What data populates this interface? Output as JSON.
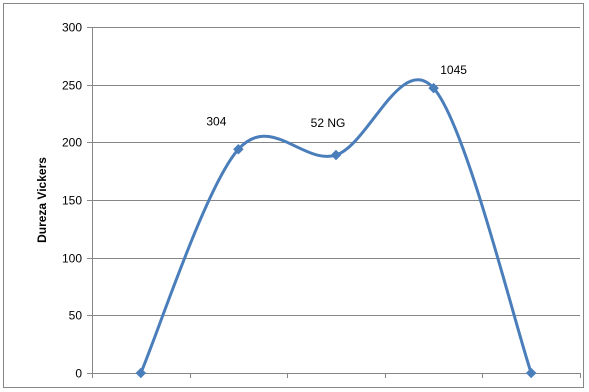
{
  "chart_data": {
    "type": "line",
    "smooth": true,
    "title": "",
    "xlabel": "",
    "ylabel": "Dureza Vickers",
    "ylim": [
      0,
      300
    ],
    "yticks": [
      0,
      50,
      100,
      150,
      200,
      250,
      300
    ],
    "grid": true,
    "legend": "none",
    "x": [
      1,
      2,
      3,
      4,
      5
    ],
    "series": [
      {
        "values": [
          0,
          194,
          189,
          247,
          0
        ],
        "point_labels": [
          "",
          "304",
          "52 NG",
          "1045",
          ""
        ],
        "color": "#4a7ebb"
      }
    ]
  },
  "colors": {
    "line": "#4a7ebb",
    "grid": "#868686",
    "axis": "#868686",
    "frame": "#868686"
  }
}
